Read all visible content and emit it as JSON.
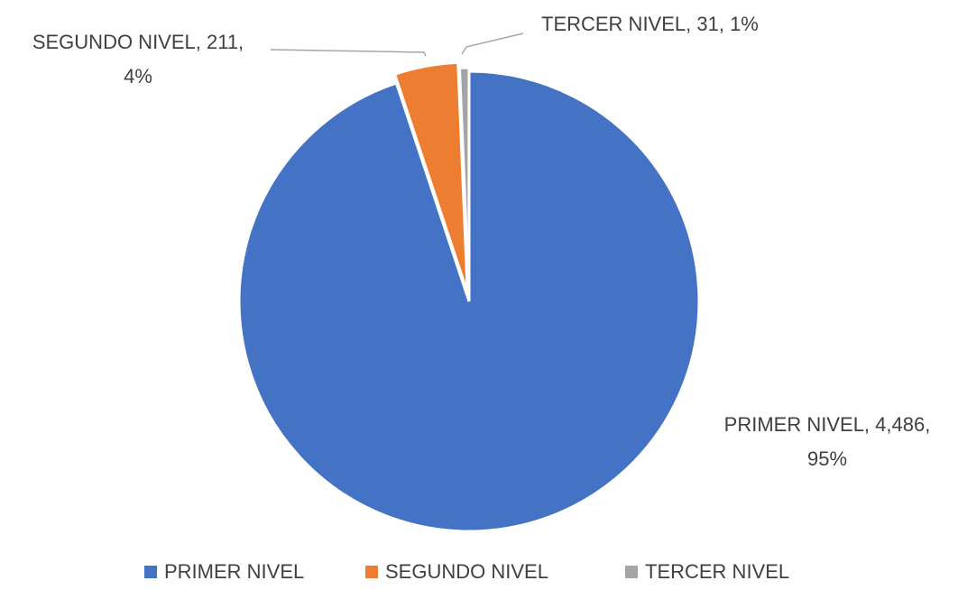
{
  "chart_data": {
    "type": "pie",
    "categories": [
      "PRIMER NIVEL",
      "SEGUNDO NIVEL",
      "TERCER NIVEL"
    ],
    "values": [
      4486,
      211,
      31
    ],
    "colors": [
      "#4472c4",
      "#ed7d31",
      "#a5a5a5"
    ],
    "data_labels": [
      [
        "PRIMER NIVEL, 4,486,",
        "95%"
      ],
      [
        "SEGUNDO NIVEL, 211,",
        "4%"
      ],
      [
        "TERCER NIVEL, 31, 1%"
      ]
    ],
    "legend": "bottom"
  }
}
